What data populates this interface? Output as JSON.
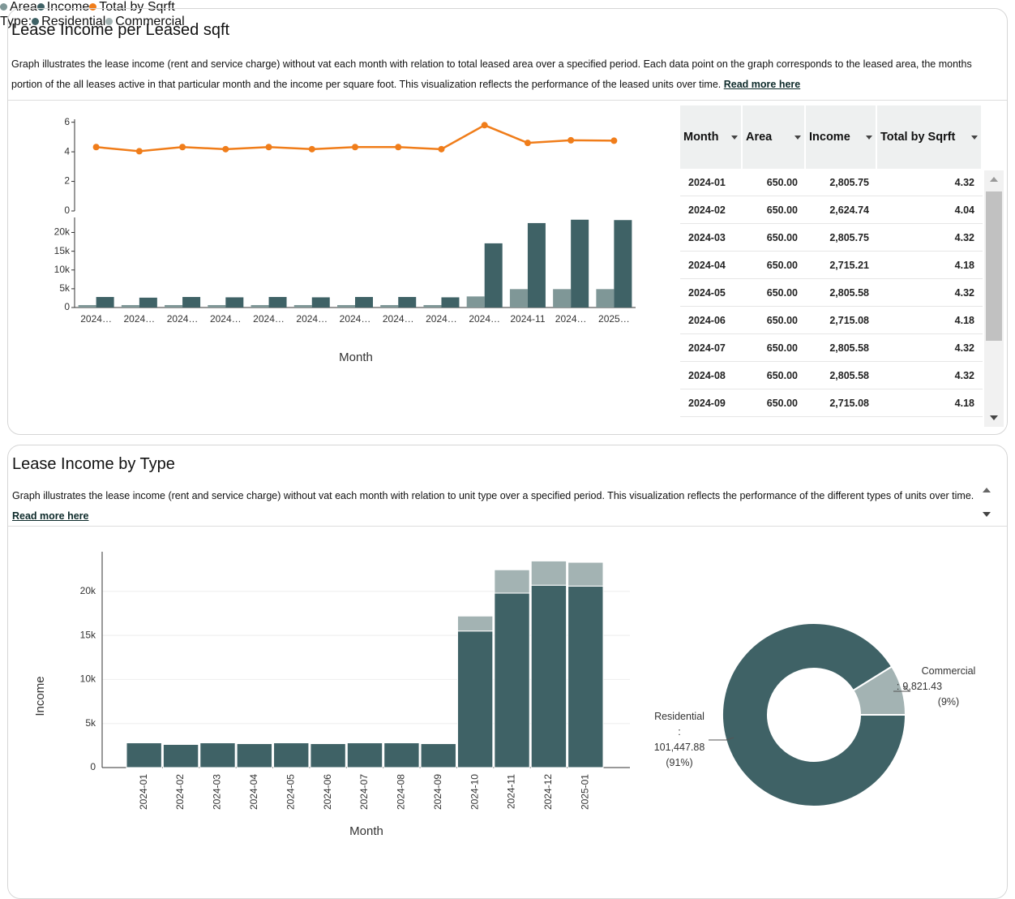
{
  "panels": [
    {
      "title": "Lease Income per Leased sqft",
      "description": "Graph illustrates the lease income (rent and service charge) without vat each month with relation to total leased area over a specified period. Each data point on the graph corresponds to the leased area, the months portion of the all leases active in that particular month and the income per square foot. This visualization reflects the performance of the leased units over time.",
      "link": "Read more here",
      "table": {
        "columns": [
          "Month",
          "Area",
          "Income",
          "Total by Sqrft"
        ],
        "rows": [
          [
            "2024-01",
            "650.00",
            "2,805.75",
            "4.32"
          ],
          [
            "2024-02",
            "650.00",
            "2,624.74",
            "4.04"
          ],
          [
            "2024-03",
            "650.00",
            "2,805.75",
            "4.32"
          ],
          [
            "2024-04",
            "650.00",
            "2,715.21",
            "4.18"
          ],
          [
            "2024-05",
            "650.00",
            "2,805.58",
            "4.32"
          ],
          [
            "2024-06",
            "650.00",
            "2,715.08",
            "4.18"
          ],
          [
            "2024-07",
            "650.00",
            "2,805.58",
            "4.32"
          ],
          [
            "2024-08",
            "650.00",
            "2,805.58",
            "4.32"
          ],
          [
            "2024-09",
            "650.00",
            "2,715.08",
            "4.18"
          ]
        ]
      }
    },
    {
      "title": "Lease Income by Type",
      "description": "Graph illustrates the lease income (rent and service charge) without vat each month with relation to unit type over a specified period. This visualization reflects the performance of the different types of units over time.",
      "link": "Read more here"
    }
  ],
  "chart_data": [
    {
      "type": "bar_line",
      "x_label": "Month",
      "categories": [
        "2024…",
        "2024…",
        "2024…",
        "2024…",
        "2024…",
        "2024…",
        "2024…",
        "2024…",
        "2024…",
        "2024…",
        "2024-11",
        "2024…",
        "2025…"
      ],
      "series": [
        {
          "name": "Area",
          "color": "#7f9797",
          "values": [
            650,
            650,
            650,
            650,
            650,
            650,
            650,
            650,
            650,
            2950,
            4900,
            4900,
            4900
          ]
        },
        {
          "name": "Income",
          "color": "#3f6266",
          "values": [
            2805.75,
            2624.74,
            2805.75,
            2715.21,
            2805.58,
            2715.08,
            2805.58,
            2805.58,
            2715.08,
            17100,
            22500,
            23400,
            23300
          ]
        },
        {
          "name": "Total by Sqrft",
          "color": "#f07d1a",
          "axis": "y2",
          "values": [
            4.32,
            4.04,
            4.32,
            4.18,
            4.32,
            4.18,
            4.32,
            4.32,
            4.18,
            5.8,
            4.6,
            4.78,
            4.75
          ]
        }
      ],
      "ylim": [
        0,
        24000
      ],
      "yticks": [
        0,
        {
          "value": 5000,
          "label": "5k"
        },
        {
          "value": 10000,
          "label": "10k"
        },
        {
          "value": 15000,
          "label": "15k"
        },
        {
          "value": 20000,
          "label": "20k"
        }
      ],
      "y2lim": [
        0,
        6.2
      ],
      "y2ticks": [
        0,
        2,
        4,
        6
      ]
    },
    {
      "type": "stacked_bar",
      "x_label": "Month",
      "y_label": "Income",
      "legend_title": "Type:",
      "grid": true,
      "categories": [
        "2024-01",
        "2024-02",
        "2024-03",
        "2024-04",
        "2024-05",
        "2024-06",
        "2024-07",
        "2024-08",
        "2024-09",
        "2024-10",
        "2024-11",
        "2024-12",
        "2025-01"
      ],
      "series": [
        {
          "name": "Residential",
          "color": "#3f6266",
          "values": [
            2805.75,
            2624.74,
            2805.75,
            2715.21,
            2805.58,
            2715.08,
            2805.58,
            2805.58,
            2715.08,
            15500,
            19800,
            20700,
            20600
          ]
        },
        {
          "name": "Commercial",
          "color": "#a3b3b3",
          "values": [
            0,
            0,
            0,
            0,
            0,
            0,
            0,
            0,
            0,
            1700,
            2650,
            2750,
            2700
          ]
        }
      ],
      "ylim": [
        0,
        24500
      ],
      "yticks": [
        0,
        {
          "value": 5000,
          "label": "5k"
        },
        {
          "value": 10000,
          "label": "10k"
        },
        {
          "value": 15000,
          "label": "15k"
        },
        {
          "value": 20000,
          "label": "20k"
        }
      ]
    },
    {
      "type": "donut",
      "labels": [
        "Residential",
        "Commercial"
      ],
      "values": [
        101447.88,
        9821.43
      ],
      "value_labels": [
        "101,447.88",
        "9,821.43"
      ],
      "percent_labels": [
        "(91%)",
        "(9%)"
      ],
      "separator": ":",
      "colors": [
        "#3f6266",
        "#a3b3b3"
      ]
    }
  ]
}
